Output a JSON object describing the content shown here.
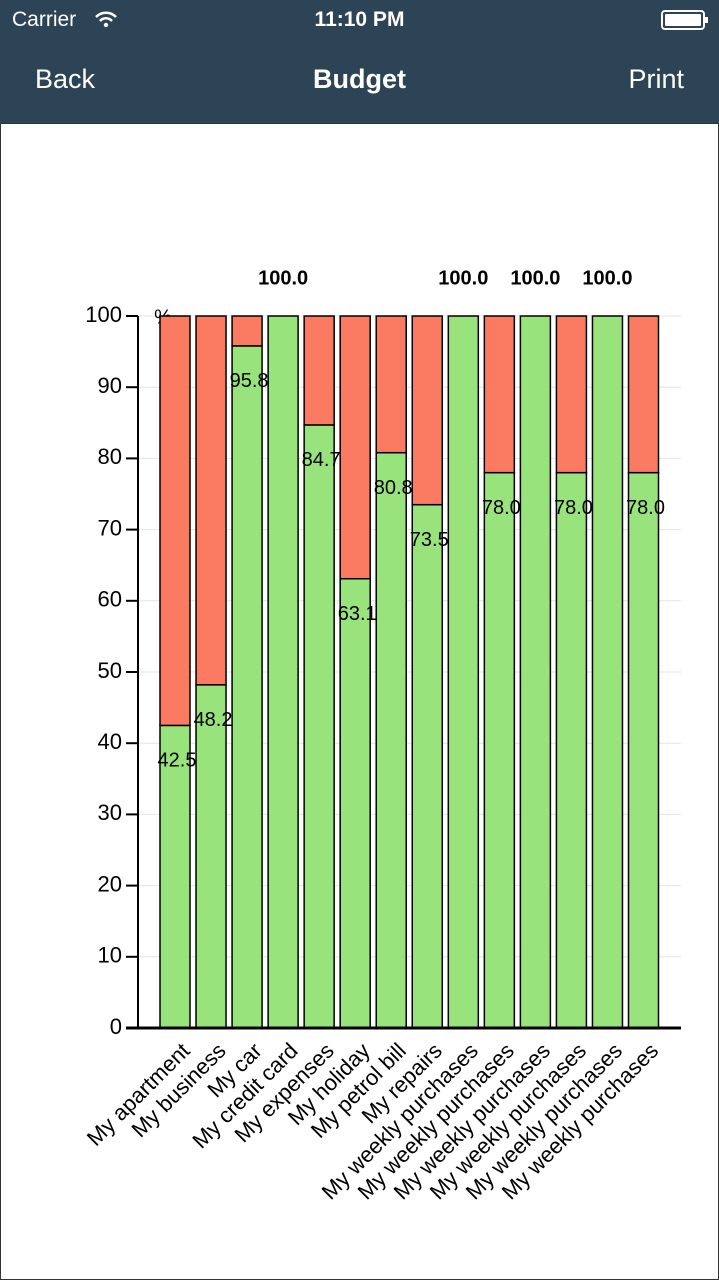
{
  "status_bar": {
    "carrier": "Carrier",
    "time": "11:10 PM"
  },
  "nav": {
    "back": "Back",
    "title": "Budget",
    "action": "Print"
  },
  "chart_data": {
    "type": "stacked_bar",
    "ylabel": "%",
    "categories": [
      "My apartment",
      "My business",
      "My car",
      "My credit card",
      "My expenses",
      "My holiday",
      "My petrol bill",
      "My repairs",
      "My weekly purchases",
      "My weekly purchases",
      "My weekly purchases",
      "My weekly purchases",
      "My weekly purchases",
      "My weekly purchases"
    ],
    "series": [
      {
        "color": "#98e37c",
        "values": [
          42.5,
          48.2,
          95.8,
          100,
          84.7,
          63.1,
          80.8,
          73.5,
          100,
          78.0,
          100,
          78.0,
          100,
          78.0
        ],
        "value_labels": [
          "42.5",
          "48.2",
          "95.8",
          "100.0",
          "84.7",
          "63.1",
          "80.8",
          "73.5",
          "100.0",
          "78.0",
          "100.0",
          "78.0",
          "100.0",
          "78.0"
        ]
      },
      {
        "color": "#fa7b62",
        "values": [
          57.5,
          51.8,
          4.2,
          0,
          15.3,
          36.9,
          19.2,
          26.5,
          0,
          22.0,
          0,
          22.0,
          0,
          22.0
        ]
      }
    ],
    "ylim": [
      0,
      100
    ],
    "yticks": [
      0,
      10,
      20,
      30,
      40,
      50,
      60,
      70,
      80,
      90,
      100
    ],
    "grid": true
  }
}
